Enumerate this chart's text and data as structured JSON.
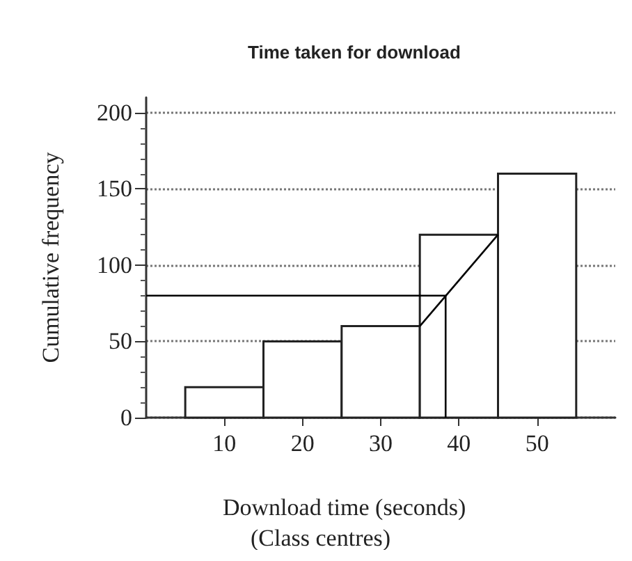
{
  "chart_data": {
    "type": "histogram",
    "title": "Time taken for download",
    "xlabel": "Download time (seconds)\n(Class centres)",
    "ylabel": "Cumulative frequency",
    "bins": [
      5,
      15,
      25,
      35,
      45,
      55
    ],
    "values": [
      20,
      50,
      60,
      120,
      160
    ],
    "color": "#ffffff",
    "xlim": [
      0,
      60
    ],
    "xticks": [
      10,
      20,
      30,
      40,
      50
    ],
    "ylim": [
      0,
      210
    ],
    "yticks": [
      0,
      50,
      100,
      150,
      200
    ],
    "grid": "y",
    "series": [
      {
        "type": "line",
        "x": [
          35,
          45
        ],
        "values": [
          60,
          120
        ],
        "color": "#000000"
      },
      {
        "type": "line",
        "x": [
          0,
          38.3,
          38.3
        ],
        "values": [
          80,
          80,
          0
        ],
        "color": "#000000"
      }
    ],
    "marker": "none",
    "line_style": "solid"
  }
}
